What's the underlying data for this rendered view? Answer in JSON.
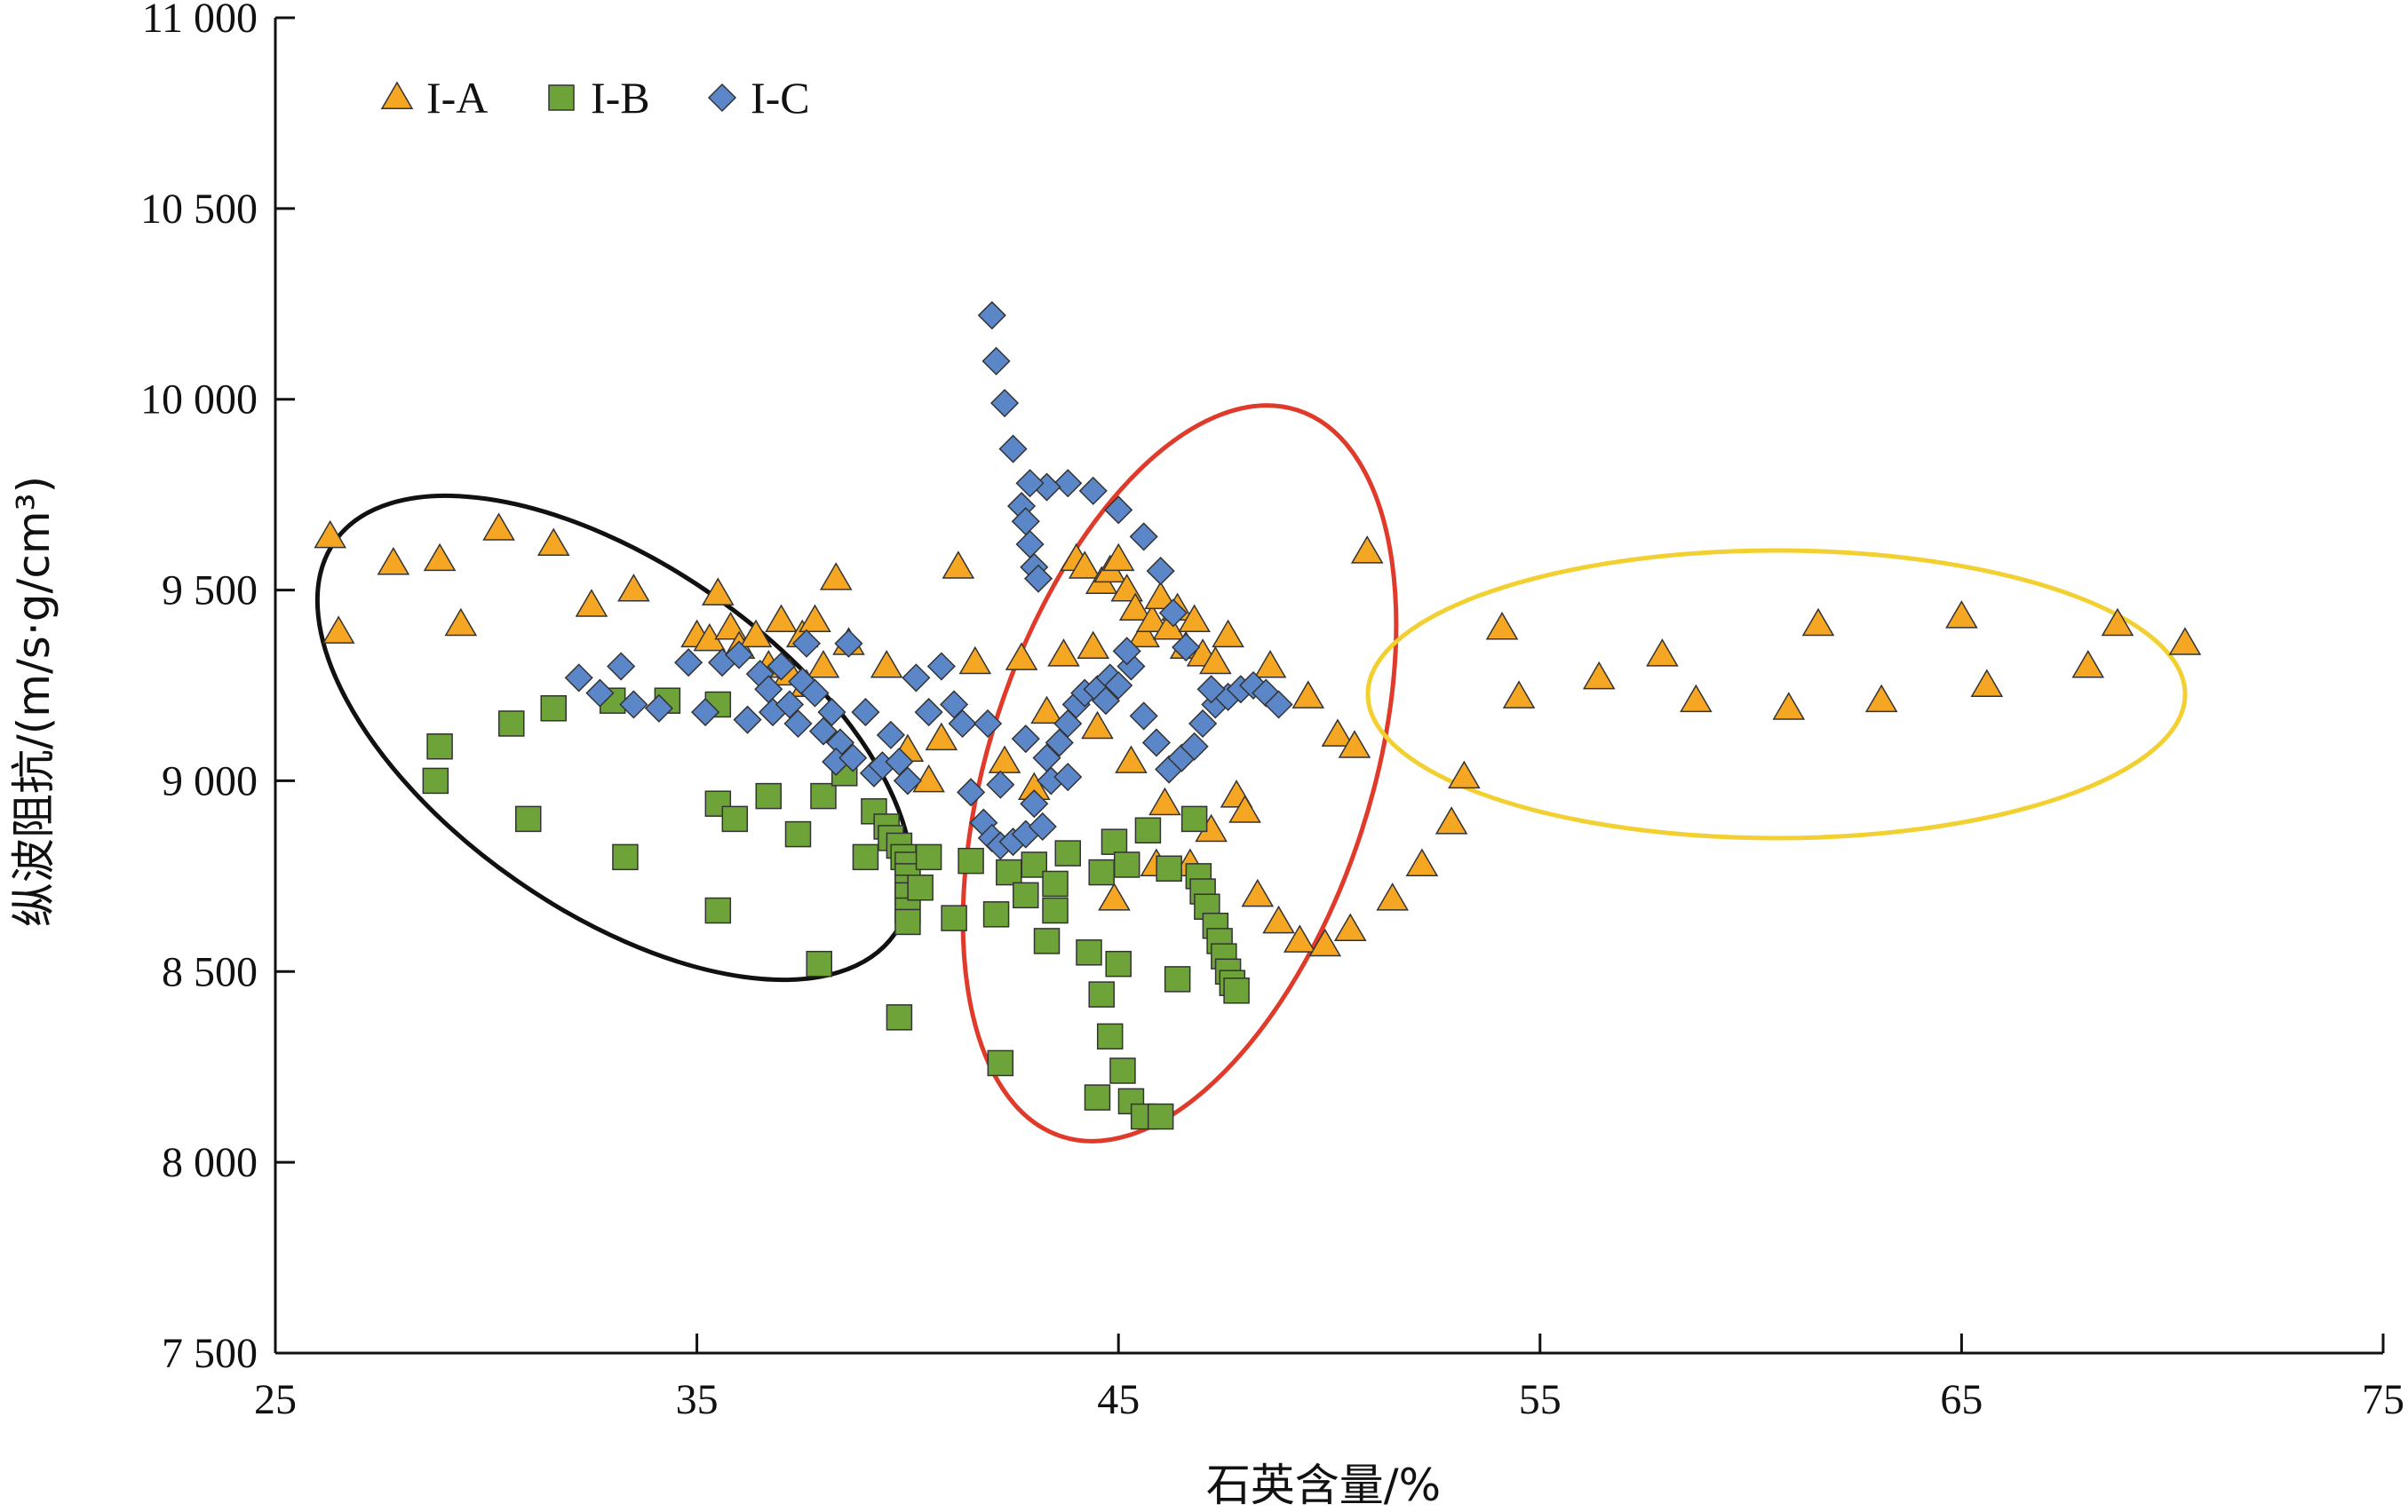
{
  "chart_data": {
    "type": "scatter",
    "title": "",
    "xlabel": "石英含量/%",
    "ylabel": "纵波阻抗/(m/s·g/cm³)",
    "xlim": [
      25,
      75
    ],
    "ylim": [
      7500,
      11000
    ],
    "x_ticks": [
      25,
      35,
      45,
      55,
      65,
      75
    ],
    "x_tick_labels": [
      "25",
      "35",
      "45",
      "55",
      "65",
      "75"
    ],
    "y_ticks": [
      7500,
      8000,
      8500,
      9000,
      9500,
      10000,
      10500,
      11000
    ],
    "y_tick_labels": [
      "7 500",
      "8 000",
      "8 500",
      "9 000",
      "9 500",
      "10 000",
      "10 500",
      "11 000"
    ],
    "grid": false,
    "legend_position": "top-left",
    "series": [
      {
        "name": "I-A",
        "marker": "triangle",
        "color": "#F5A623",
        "points": [
          [
            26.3,
            9640
          ],
          [
            26.5,
            9390
          ],
          [
            27.8,
            9570
          ],
          [
            28.9,
            9580
          ],
          [
            29.4,
            9410
          ],
          [
            30.3,
            9660
          ],
          [
            31.6,
            9620
          ],
          [
            32.5,
            9460
          ],
          [
            33.5,
            9500
          ],
          [
            35.0,
            9380
          ],
          [
            35.3,
            9370
          ],
          [
            35.5,
            9490
          ],
          [
            35.8,
            9400
          ],
          [
            36.0,
            9350
          ],
          [
            36.4,
            9380
          ],
          [
            36.7,
            9300
          ],
          [
            37.0,
            9420
          ],
          [
            37.2,
            9280
          ],
          [
            37.5,
            9380
          ],
          [
            37.6,
            9250
          ],
          [
            37.8,
            9420
          ],
          [
            38.0,
            9300
          ],
          [
            38.3,
            9530
          ],
          [
            38.6,
            9360
          ],
          [
            39.5,
            9300
          ],
          [
            40.0,
            9080
          ],
          [
            40.5,
            9000
          ],
          [
            40.8,
            9110
          ],
          [
            41.2,
            9560
          ],
          [
            41.6,
            9310
          ],
          [
            42.3,
            9050
          ],
          [
            42.7,
            9320
          ],
          [
            43.0,
            8980
          ],
          [
            43.3,
            9180
          ],
          [
            43.7,
            9330
          ],
          [
            44.0,
            9580
          ],
          [
            44.2,
            9560
          ],
          [
            44.4,
            9350
          ],
          [
            44.6,
            9520
          ],
          [
            44.8,
            9550
          ],
          [
            45.0,
            9580
          ],
          [
            45.2,
            9500
          ],
          [
            45.4,
            9450
          ],
          [
            45.6,
            9380
          ],
          [
            45.8,
            9420
          ],
          [
            46.0,
            9480
          ],
          [
            46.2,
            9400
          ],
          [
            46.4,
            9450
          ],
          [
            46.6,
            9350
          ],
          [
            46.8,
            9420
          ],
          [
            47.0,
            9330
          ],
          [
            47.3,
            9310
          ],
          [
            47.6,
            9380
          ],
          [
            47.8,
            8960
          ],
          [
            48.0,
            8920
          ],
          [
            48.3,
            8700
          ],
          [
            48.8,
            8630
          ],
          [
            49.3,
            8580
          ],
          [
            49.9,
            8570
          ],
          [
            50.5,
            8610
          ],
          [
            50.9,
            9600
          ],
          [
            51.5,
            8690
          ],
          [
            52.2,
            8780
          ],
          [
            52.9,
            8890
          ],
          [
            53.2,
            9010
          ],
          [
            48.6,
            9300
          ],
          [
            49.5,
            9220
          ],
          [
            50.2,
            9120
          ],
          [
            50.6,
            9090
          ],
          [
            44.5,
            9140
          ],
          [
            45.3,
            9050
          ],
          [
            46.1,
            8940
          ],
          [
            47.2,
            8870
          ],
          [
            46.7,
            8780
          ],
          [
            45.9,
            8780
          ],
          [
            44.9,
            8690
          ],
          [
            54.1,
            9400
          ],
          [
            54.5,
            9220
          ],
          [
            56.4,
            9270
          ],
          [
            57.9,
            9330
          ],
          [
            58.7,
            9210
          ],
          [
            60.9,
            9190
          ],
          [
            61.6,
            9410
          ],
          [
            63.1,
            9210
          ],
          [
            65.0,
            9430
          ],
          [
            65.6,
            9250
          ],
          [
            68.0,
            9300
          ],
          [
            68.7,
            9410
          ],
          [
            70.3,
            9360
          ]
        ]
      },
      {
        "name": "I-B",
        "marker": "square",
        "color": "#6EA33A",
        "points": [
          [
            28.9,
            9090
          ],
          [
            28.8,
            9000
          ],
          [
            30.6,
            9150
          ],
          [
            31.0,
            8900
          ],
          [
            31.6,
            9190
          ],
          [
            33.0,
            9210
          ],
          [
            33.3,
            8800
          ],
          [
            34.3,
            9210
          ],
          [
            35.5,
            9200
          ],
          [
            35.5,
            8940
          ],
          [
            35.5,
            8660
          ],
          [
            35.9,
            8900
          ],
          [
            36.7,
            8960
          ],
          [
            37.4,
            8860
          ],
          [
            37.9,
            8520
          ],
          [
            38.0,
            8960
          ],
          [
            38.5,
            9020
          ],
          [
            39.0,
            8800
          ],
          [
            39.2,
            8920
          ],
          [
            39.5,
            8880
          ],
          [
            39.6,
            8850
          ],
          [
            39.8,
            8830
          ],
          [
            39.9,
            8800
          ],
          [
            40.0,
            8780
          ],
          [
            40.0,
            8750
          ],
          [
            40.0,
            8720
          ],
          [
            40.0,
            8700
          ],
          [
            40.0,
            8660
          ],
          [
            40.0,
            8630
          ],
          [
            40.3,
            8720
          ],
          [
            40.5,
            8800
          ],
          [
            39.8,
            8380
          ],
          [
            41.1,
            8640
          ],
          [
            41.5,
            8790
          ],
          [
            42.1,
            8650
          ],
          [
            42.2,
            8260
          ],
          [
            42.4,
            8760
          ],
          [
            42.8,
            8700
          ],
          [
            43.0,
            8780
          ],
          [
            43.3,
            8580
          ],
          [
            43.5,
            8730
          ],
          [
            43.5,
            8660
          ],
          [
            43.8,
            8810
          ],
          [
            44.3,
            8550
          ],
          [
            44.5,
            8170
          ],
          [
            44.6,
            8440
          ],
          [
            44.6,
            8760
          ],
          [
            44.8,
            8330
          ],
          [
            44.9,
            8840
          ],
          [
            45.0,
            8520
          ],
          [
            45.1,
            8240
          ],
          [
            45.3,
            8160
          ],
          [
            45.6,
            8120
          ],
          [
            46.0,
            8120
          ],
          [
            45.7,
            8870
          ],
          [
            46.2,
            8770
          ],
          [
            46.4,
            8480
          ],
          [
            46.8,
            8900
          ],
          [
            46.9,
            8750
          ],
          [
            47.0,
            8710
          ],
          [
            47.1,
            8670
          ],
          [
            47.3,
            8620
          ],
          [
            47.4,
            8580
          ],
          [
            47.5,
            8540
          ],
          [
            47.6,
            8500
          ],
          [
            47.7,
            8470
          ],
          [
            47.8,
            8450
          ],
          [
            45.2,
            8780
          ]
        ]
      },
      {
        "name": "I-C",
        "marker": "diamond",
        "color": "#5B86C8",
        "points": [
          [
            32.2,
            9270
          ],
          [
            32.7,
            9230
          ],
          [
            33.2,
            9300
          ],
          [
            33.5,
            9200
          ],
          [
            34.1,
            9190
          ],
          [
            34.8,
            9310
          ],
          [
            35.2,
            9180
          ],
          [
            35.6,
            9310
          ],
          [
            36.0,
            9330
          ],
          [
            36.2,
            9160
          ],
          [
            36.5,
            9280
          ],
          [
            36.7,
            9240
          ],
          [
            36.8,
            9180
          ],
          [
            37.0,
            9300
          ],
          [
            37.2,
            9200
          ],
          [
            37.4,
            9150
          ],
          [
            37.5,
            9260
          ],
          [
            37.6,
            9360
          ],
          [
            37.8,
            9230
          ],
          [
            38.0,
            9130
          ],
          [
            38.2,
            9180
          ],
          [
            38.4,
            9100
          ],
          [
            38.6,
            9360
          ],
          [
            38.3,
            9050
          ],
          [
            38.7,
            9060
          ],
          [
            39.0,
            9180
          ],
          [
            39.2,
            9020
          ],
          [
            39.4,
            9040
          ],
          [
            39.6,
            9120
          ],
          [
            39.8,
            9050
          ],
          [
            40.0,
            9000
          ],
          [
            40.2,
            9270
          ],
          [
            40.5,
            9180
          ],
          [
            40.8,
            9300
          ],
          [
            41.1,
            9200
          ],
          [
            41.3,
            9150
          ],
          [
            41.5,
            8970
          ],
          [
            41.8,
            8890
          ],
          [
            42.0,
            8850
          ],
          [
            42.2,
            8830
          ],
          [
            42.5,
            8840
          ],
          [
            42.8,
            8860
          ],
          [
            43.0,
            8940
          ],
          [
            43.2,
            8880
          ],
          [
            43.4,
            9000
          ],
          [
            43.6,
            9100
          ],
          [
            43.8,
            9150
          ],
          [
            44.0,
            9200
          ],
          [
            44.2,
            9230
          ],
          [
            44.5,
            9240
          ],
          [
            44.8,
            9270
          ],
          [
            45.0,
            9250
          ],
          [
            45.3,
            9300
          ],
          [
            45.6,
            9170
          ],
          [
            45.9,
            9100
          ],
          [
            46.2,
            9030
          ],
          [
            46.5,
            9060
          ],
          [
            46.8,
            9090
          ],
          [
            47.0,
            9150
          ],
          [
            47.3,
            9200
          ],
          [
            47.6,
            9220
          ],
          [
            47.9,
            9240
          ],
          [
            48.2,
            9250
          ],
          [
            48.5,
            9230
          ],
          [
            48.8,
            9200
          ],
          [
            46.0,
            9550
          ],
          [
            46.3,
            9440
          ],
          [
            45.6,
            9640
          ],
          [
            45.0,
            9710
          ],
          [
            44.4,
            9760
          ],
          [
            43.8,
            9780
          ],
          [
            43.3,
            9770
          ],
          [
            42.9,
            9780
          ],
          [
            42.7,
            9720
          ],
          [
            42.8,
            9680
          ],
          [
            42.9,
            9620
          ],
          [
            43.0,
            9560
          ],
          [
            43.1,
            9530
          ],
          [
            42.5,
            9870
          ],
          [
            42.3,
            9990
          ],
          [
            42.1,
            10100
          ],
          [
            42.0,
            10220
          ],
          [
            42.8,
            9110
          ],
          [
            43.3,
            9060
          ],
          [
            42.2,
            8990
          ],
          [
            41.9,
            9150
          ],
          [
            43.8,
            9010
          ],
          [
            44.7,
            9210
          ],
          [
            45.2,
            9340
          ],
          [
            46.6,
            9350
          ],
          [
            47.2,
            9240
          ]
        ]
      }
    ],
    "annotations": [
      {
        "type": "ellipse",
        "color": "#111111",
        "note": ""
      },
      {
        "type": "ellipse",
        "color": "#E03A2B",
        "note": ""
      },
      {
        "type": "ellipse",
        "color": "#F2D031",
        "note": ""
      }
    ]
  }
}
